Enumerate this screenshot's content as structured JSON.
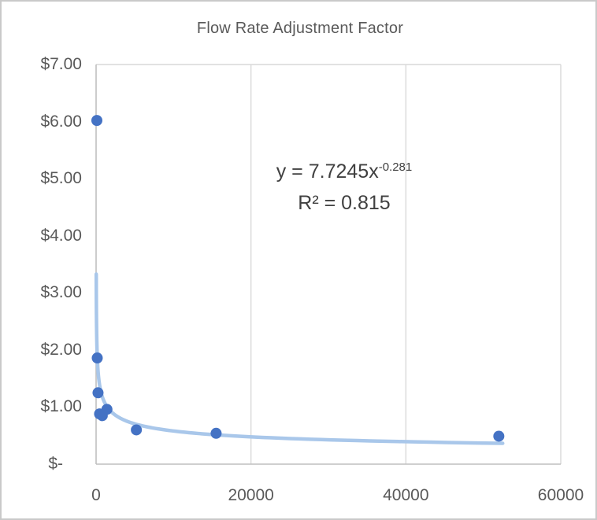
{
  "chart": {
    "title": "Flow Rate Adjustment Factor",
    "trendline_label": {
      "base": "y = 7.7245x",
      "exponent": "-0.281",
      "r_squared": "R² = 0.815"
    }
  },
  "chart_data": {
    "type": "scatter",
    "title": "Flow Rate Adjustment Factor",
    "xlabel": "",
    "ylabel": "",
    "xlim": [
      0,
      60000
    ],
    "ylim": [
      0,
      7
    ],
    "points": [
      {
        "x": 100,
        "y": 6.02
      },
      {
        "x": 150,
        "y": 1.86
      },
      {
        "x": 250,
        "y": 1.25
      },
      {
        "x": 450,
        "y": 0.88
      },
      {
        "x": 800,
        "y": 0.85
      },
      {
        "x": 1400,
        "y": 0.96
      },
      {
        "x": 5200,
        "y": 0.6
      },
      {
        "x": 15500,
        "y": 0.54
      },
      {
        "x": 52000,
        "y": 0.49
      }
    ],
    "trendline": {
      "type": "power",
      "a": 7.7245,
      "b": -0.281,
      "r2": 0.815,
      "x_start": 20,
      "x_end": 52500
    },
    "x_ticks": [
      {
        "v": 0,
        "label": "0"
      },
      {
        "v": 20000,
        "label": "20000"
      },
      {
        "v": 40000,
        "label": "40000"
      },
      {
        "v": 60000,
        "label": "60000"
      }
    ],
    "y_ticks": [
      {
        "v": 0,
        "label": "$-"
      },
      {
        "v": 1,
        "label": "$1.00"
      },
      {
        "v": 2,
        "label": "$2.00"
      },
      {
        "v": 3,
        "label": "$3.00"
      },
      {
        "v": 4,
        "label": "$4.00"
      },
      {
        "v": 5,
        "label": "$5.00"
      },
      {
        "v": 6,
        "label": "$6.00"
      },
      {
        "v": 7,
        "label": "$7.00"
      }
    ],
    "gridlines": {
      "vertical_at": [
        20000,
        40000,
        60000
      ],
      "horizontal_at": [
        7
      ]
    },
    "legend": "none",
    "colors": {
      "point": "#4472C4",
      "trendline": "#A9C7EA",
      "grid": "#D9D9D9",
      "axis": "#BFBFBF",
      "title_text": "#595959",
      "tick_text": "#595959",
      "equation_text": "#404040"
    }
  }
}
